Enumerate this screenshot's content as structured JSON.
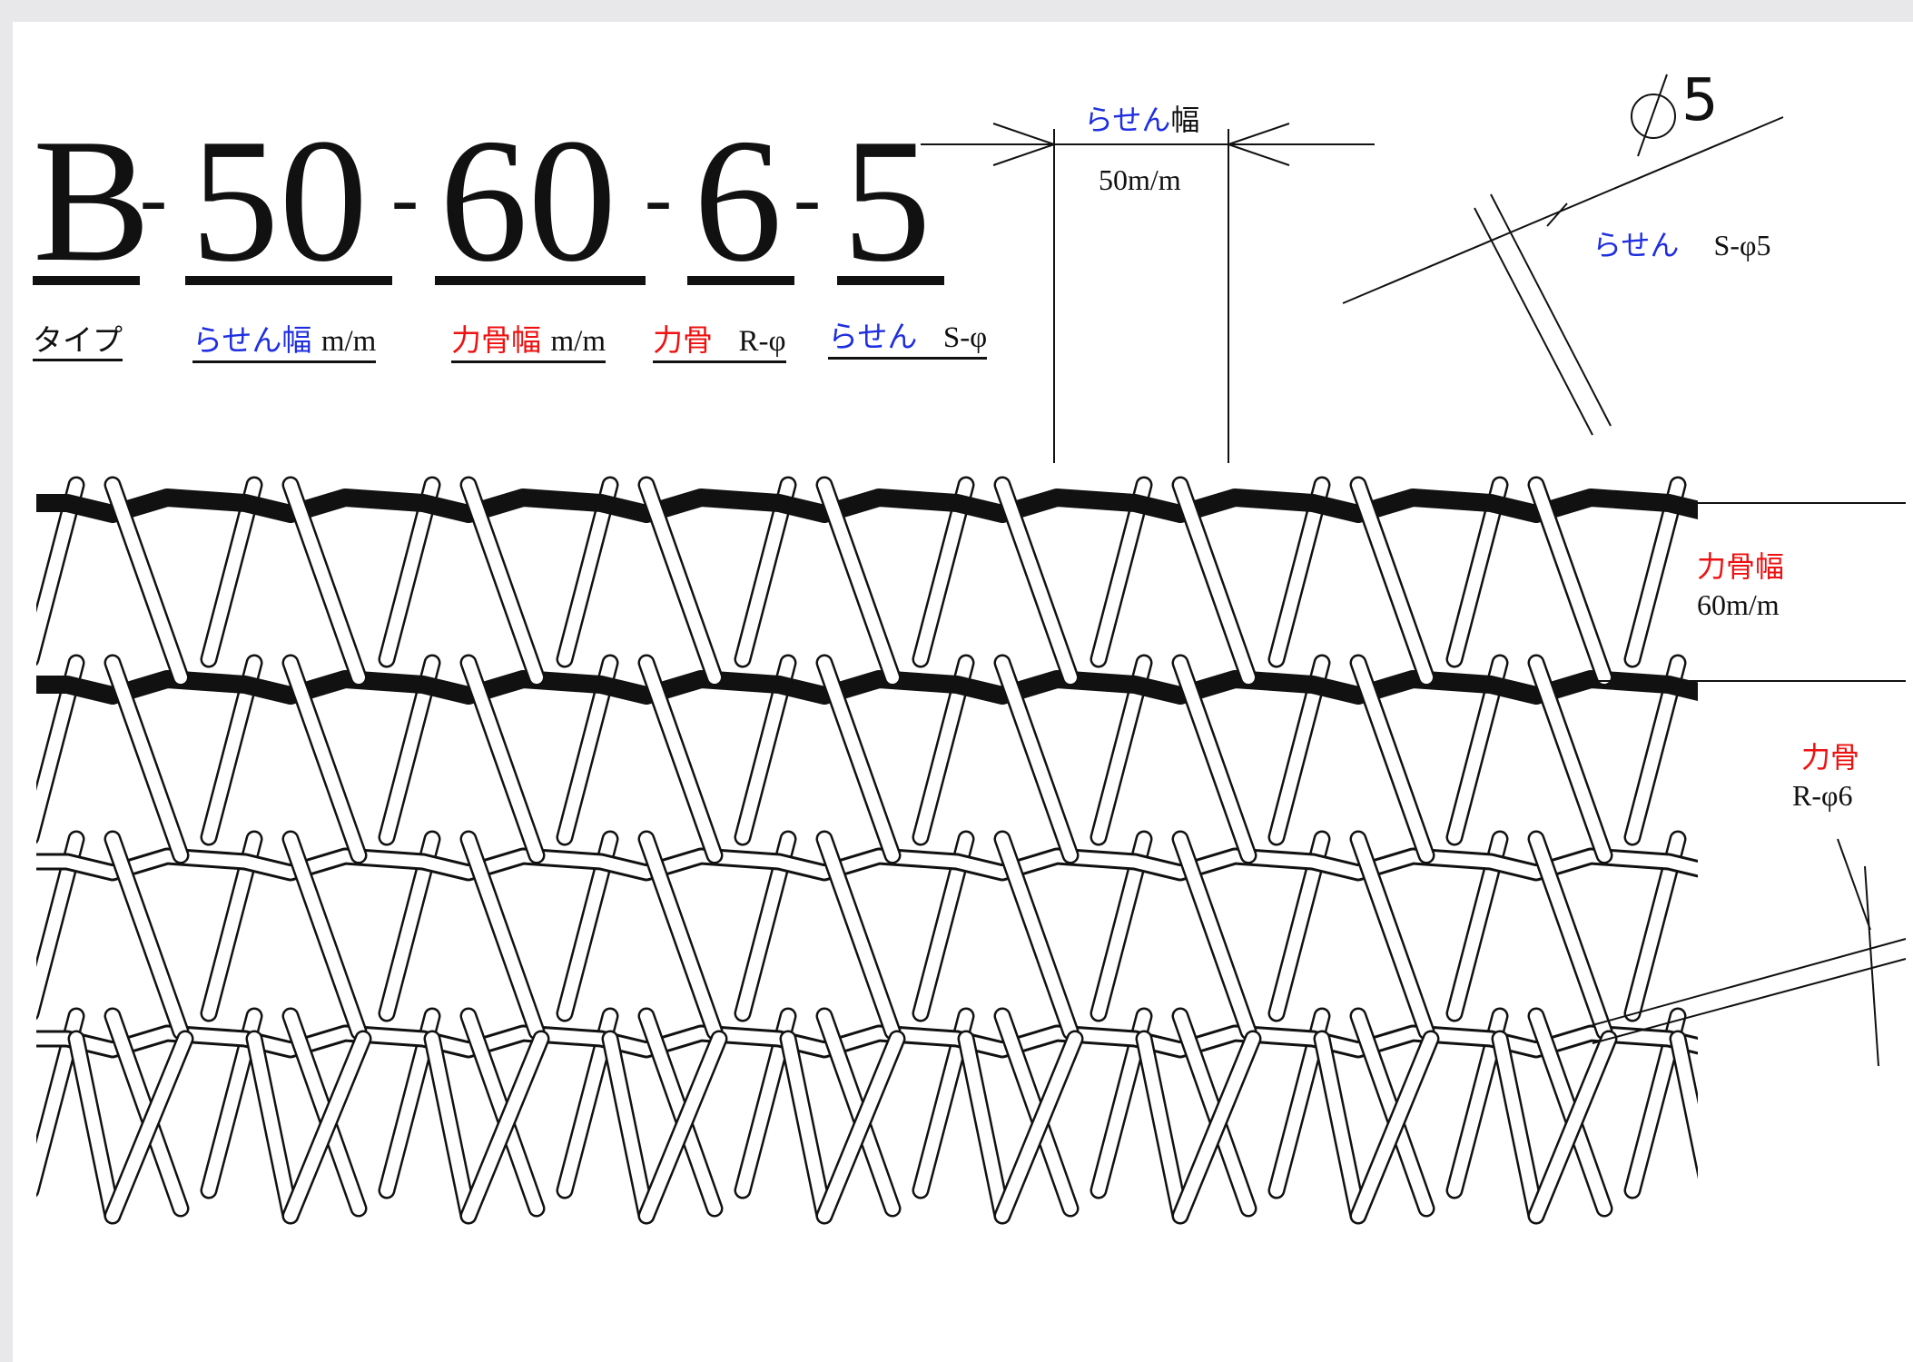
{
  "model_code": {
    "type": "B",
    "spiral_pitch": "50",
    "rod_pitch": "60",
    "rod_diameter": "6",
    "spiral_diameter": "5",
    "separator": "-"
  },
  "legend": {
    "type_label": "タイプ",
    "spiral_width_label": "らせん幅",
    "spiral_width_unit": "m/m",
    "rod_width_label": "力骨幅",
    "rod_width_unit": "m/m",
    "rod_label": "力骨",
    "rod_symbol": "R-φ",
    "spiral_label": "らせん",
    "spiral_symbol": "S-φ"
  },
  "callouts": {
    "spiral_width": {
      "label": "らせん",
      "label_suffix": "幅",
      "value": "50m/m"
    },
    "spiral_diameter": {
      "label": "らせん",
      "value": "S-φ5"
    },
    "phi_mark": "5",
    "rod_width": {
      "label": "力骨幅",
      "value": "60m/m"
    },
    "rod_diameter": {
      "label": "力骨",
      "value": "R-φ6"
    }
  },
  "colors": {
    "blue": "#1f2fe0",
    "red": "#ee1111",
    "ink": "#111111"
  }
}
